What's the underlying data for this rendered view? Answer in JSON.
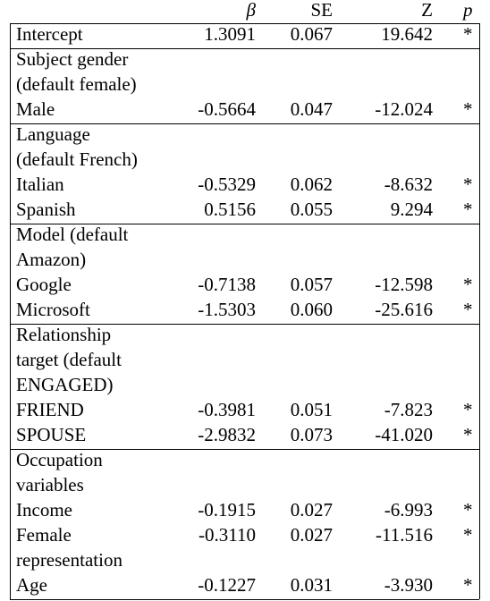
{
  "header": {
    "col0": "",
    "beta": "β",
    "se": "SE",
    "z": "Z",
    "p": "p"
  },
  "rows": [
    {
      "label": "Intercept",
      "beta": "1.3091",
      "se": "0.067",
      "z": "19.642",
      "p": "*"
    },
    {
      "label": "Subject gender",
      "beta": "",
      "se": "",
      "z": "",
      "p": ""
    },
    {
      "label": "(default female)",
      "beta": "",
      "se": "",
      "z": "",
      "p": ""
    },
    {
      "label": "Male",
      "beta": "-0.5664",
      "se": "0.047",
      "z": "-12.024",
      "p": "*"
    },
    {
      "label": "Language",
      "beta": "",
      "se": "",
      "z": "",
      "p": ""
    },
    {
      "label": "(default French)",
      "beta": "",
      "se": "",
      "z": "",
      "p": ""
    },
    {
      "label": "Italian",
      "beta": "-0.5329",
      "se": "0.062",
      "z": "-8.632",
      "p": "*"
    },
    {
      "label": "Spanish",
      "beta": "0.5156",
      "se": "0.055",
      "z": "9.294",
      "p": "*"
    },
    {
      "label": "Model (default",
      "beta": "",
      "se": "",
      "z": "",
      "p": ""
    },
    {
      "label": "Amazon)",
      "beta": "",
      "se": "",
      "z": "",
      "p": ""
    },
    {
      "label": "Google",
      "beta": "-0.7138",
      "se": "0.057",
      "z": "-12.598",
      "p": "*"
    },
    {
      "label": "Microsoft",
      "beta": "-1.5303",
      "se": "0.060",
      "z": "-25.616",
      "p": "*"
    },
    {
      "label": "Relationship",
      "beta": "",
      "se": "",
      "z": "",
      "p": ""
    },
    {
      "label": "target (default",
      "beta": "",
      "se": "",
      "z": "",
      "p": ""
    },
    {
      "label": "ENGAGED)",
      "beta": "",
      "se": "",
      "z": "",
      "p": ""
    },
    {
      "label": "FRIEND",
      "beta": "-0.3981",
      "se": "0.051",
      "z": "-7.823",
      "p": "*"
    },
    {
      "label": "SPOUSE",
      "beta": "-2.9832",
      "se": "0.073",
      "z": "-41.020",
      "p": "*"
    },
    {
      "label": "Occupation",
      "beta": "",
      "se": "",
      "z": "",
      "p": ""
    },
    {
      "label": "variables",
      "beta": "",
      "se": "",
      "z": "",
      "p": ""
    },
    {
      "label": "Income",
      "beta": "-0.1915",
      "se": "0.027",
      "z": "-6.993",
      "p": "*"
    },
    {
      "label": "Female",
      "beta": "-0.3110",
      "se": "0.027",
      "z": "-11.516",
      "p": "*"
    },
    {
      "label": "representation",
      "beta": "",
      "se": "",
      "z": "",
      "p": ""
    },
    {
      "label": "Age",
      "beta": "-0.1227",
      "se": "0.031",
      "z": "-3.930",
      "p": "*"
    }
  ]
}
